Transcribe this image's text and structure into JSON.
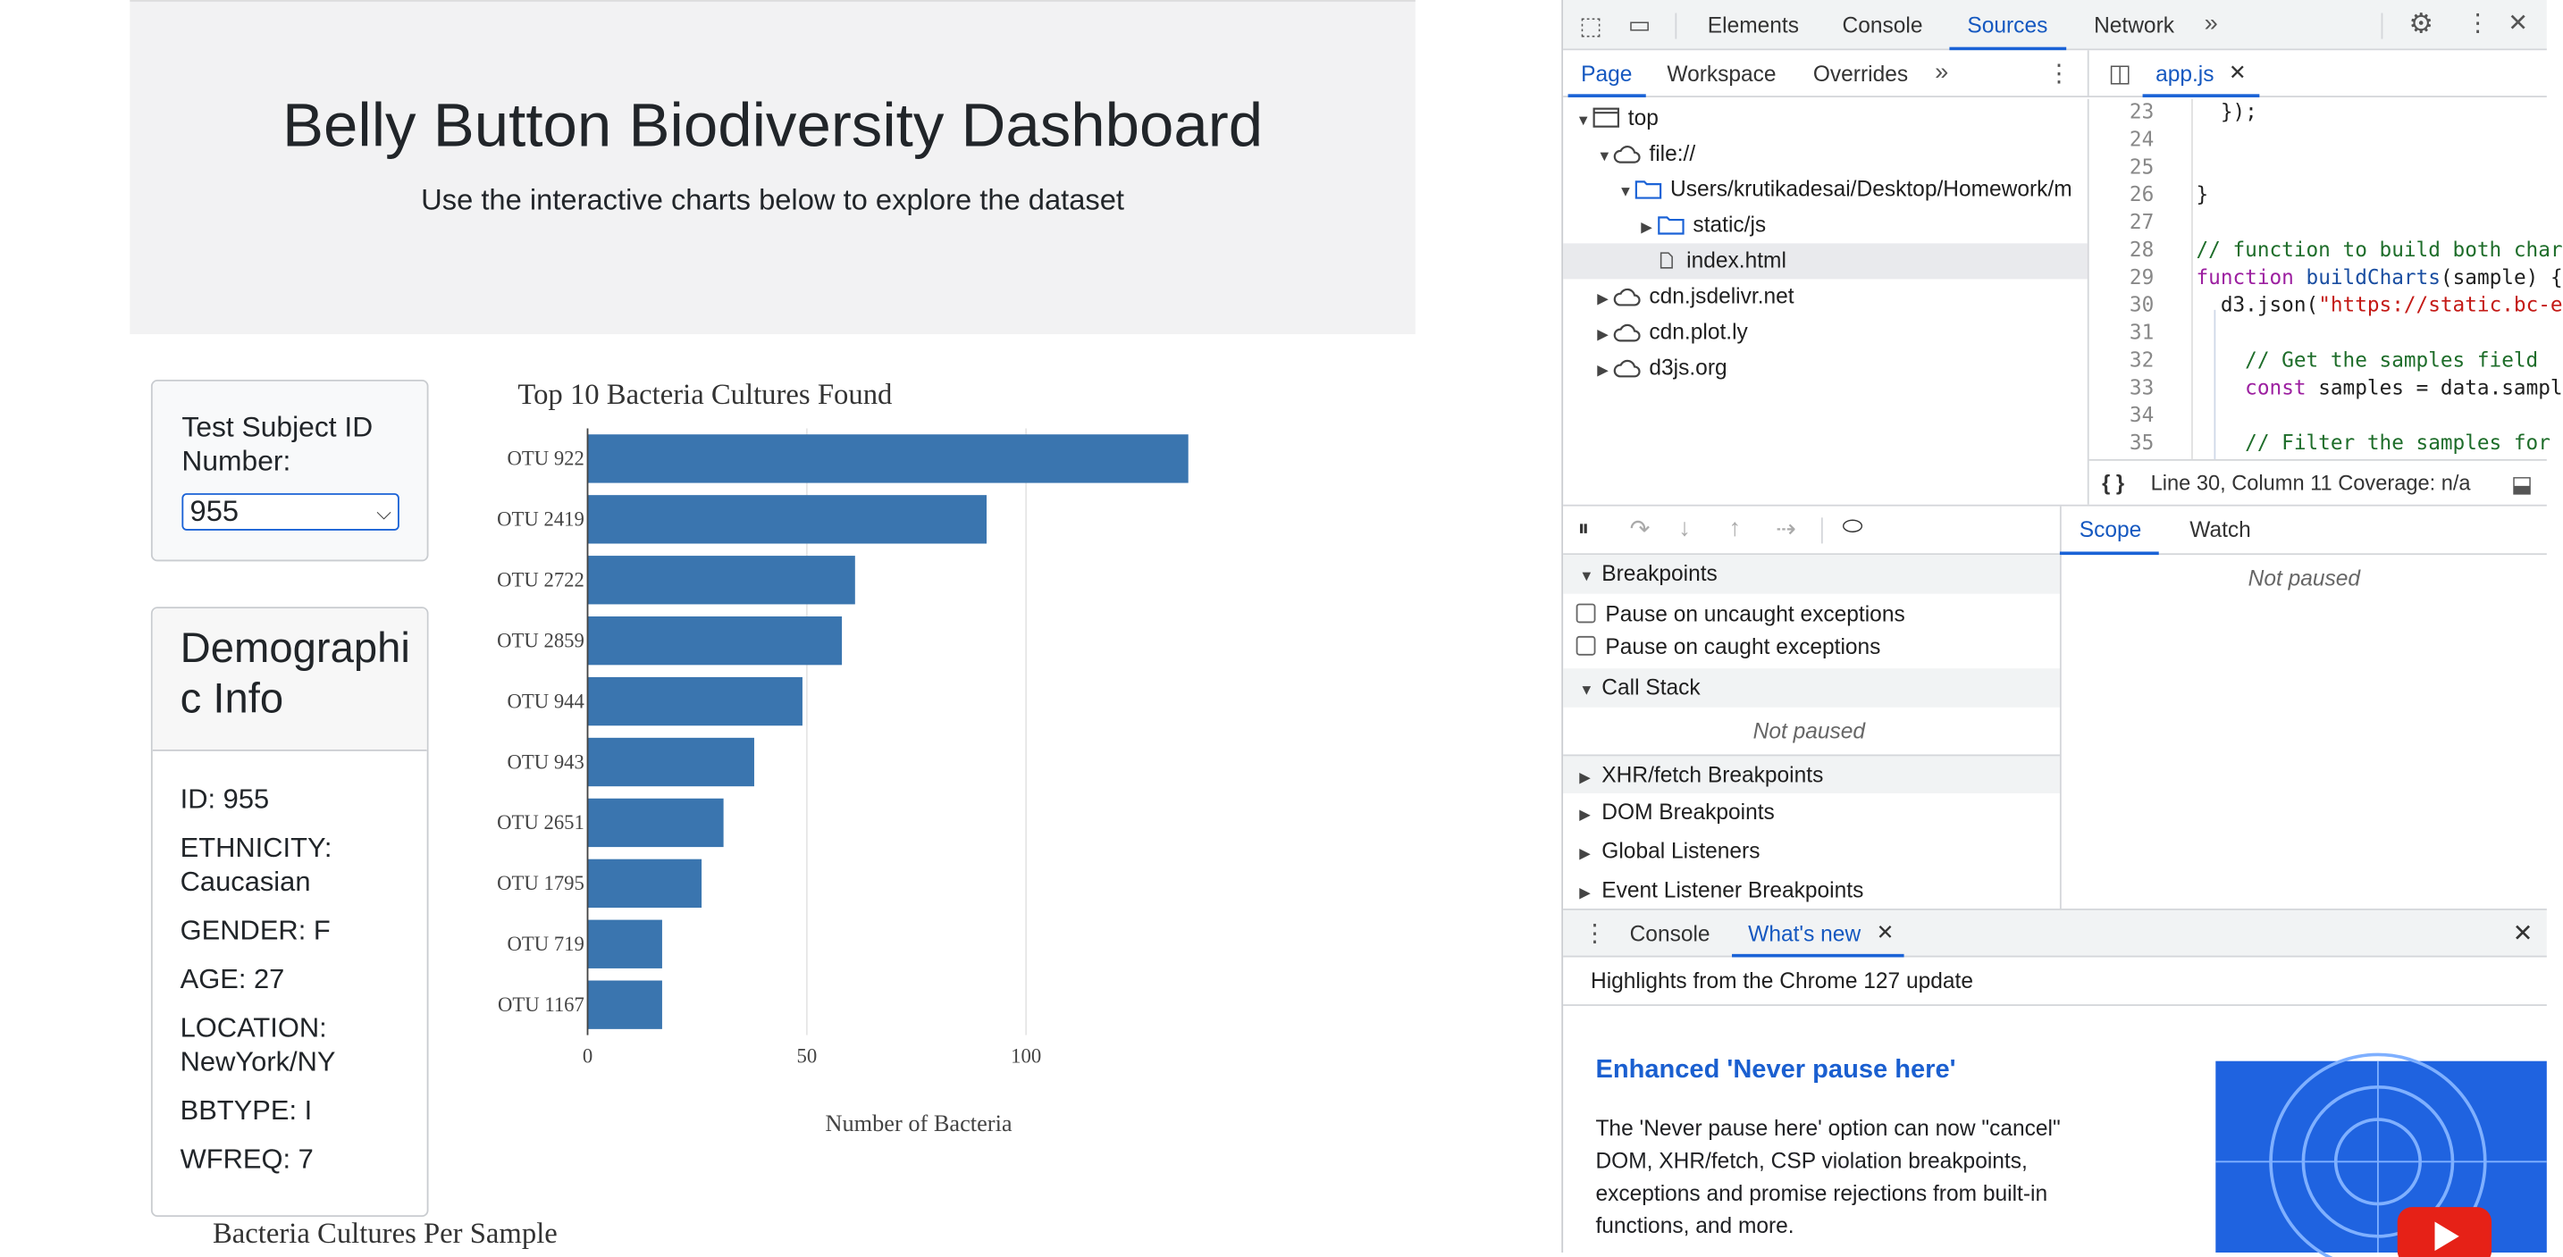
{
  "page": {
    "title": "Belly Button Biodiversity Dashboard",
    "subtitle": "Use the interactive charts below to explore the dataset",
    "selector": {
      "label": "Test Subject ID Number:",
      "value": "955"
    },
    "demographic": {
      "title": "Demographic Info",
      "lines": [
        "ID: 955",
        "ETHNICITY: Caucasian",
        "GENDER: F",
        "AGE: 27",
        "LOCATION: NewYork/NY",
        "BBTYPE: I",
        "WFREQ: 7"
      ]
    },
    "bubble_title": "Bacteria Cultures Per Sample"
  },
  "chart_data": {
    "type": "bar",
    "orientation": "horizontal",
    "title": "Top 10 Bacteria Cultures Found",
    "xlabel": "Number of Bacteria",
    "ylabel": "",
    "categories": [
      "OTU 922",
      "OTU 2419",
      "OTU 2722",
      "OTU 2859",
      "OTU 944",
      "OTU 943",
      "OTU 2651",
      "OTU 1795",
      "OTU 719",
      "OTU 1167"
    ],
    "values": [
      137,
      91,
      61,
      58,
      49,
      38,
      31,
      26,
      17,
      17
    ],
    "xticks": [
      0,
      50,
      100
    ],
    "xlim": [
      0,
      144
    ],
    "grid": true,
    "bar_color": "#3a75af"
  },
  "devtools": {
    "main_tabs": [
      "Elements",
      "Console",
      "Sources",
      "Network"
    ],
    "active_tab": "Sources",
    "nav_tabs": [
      "Page",
      "Workspace",
      "Overrides"
    ],
    "active_nav": "Page",
    "file_tab": "app.js",
    "tree": [
      {
        "label": "top"
      },
      {
        "label": "file://"
      },
      {
        "label": "Users/krutikadesai/Desktop/Homework/m"
      },
      {
        "label": "static/js"
      },
      {
        "label": "index.html"
      },
      {
        "label": "cdn.jsdelivr.net"
      },
      {
        "label": "cdn.plot.ly"
      },
      {
        "label": "d3js.org"
      }
    ],
    "code_lines": [
      {
        "n": "23",
        "text": "  });"
      },
      {
        "n": "24",
        "text": ""
      },
      {
        "n": "25",
        "text": ""
      },
      {
        "n": "26",
        "text": "}"
      },
      {
        "n": "27",
        "text": ""
      },
      {
        "n": "28",
        "text": "// function to build both char"
      },
      {
        "n": "29",
        "text": "function buildCharts(sample) {"
      },
      {
        "n": "30",
        "text": "  d3.json(\"https://static.bc-e"
      },
      {
        "n": "31",
        "text": ""
      },
      {
        "n": "32",
        "text": "    // Get the samples field"
      },
      {
        "n": "33",
        "text": "    const samples = data.sampl"
      },
      {
        "n": "34",
        "text": ""
      },
      {
        "n": "35",
        "text": "    // Filter the samples for"
      }
    ],
    "status": "Line 30, Column 11  Coverage: n/a",
    "status_braces": "{ }",
    "scope_tabs": [
      "Scope",
      "Watch"
    ],
    "not_paused": "Not paused",
    "breakpoints_header": "Breakpoints",
    "pause_uncaught": "Pause on uncaught exceptions",
    "pause_caught": "Pause on caught exceptions",
    "call_stack_header": "Call Stack",
    "sections": [
      "XHR/fetch Breakpoints",
      "DOM Breakpoints",
      "Global Listeners",
      "Event Listener Breakpoints"
    ],
    "drawer_tabs": [
      "Console",
      "What's new"
    ],
    "highlights": "Highlights from the Chrome 127 update",
    "whats_new_title": "Enhanced 'Never pause here'",
    "whats_new_body": "The 'Never pause here' option can now \"cancel\" DOM, XHR/fetch, CSP violation breakpoints, exceptions and promise rejections from built-in functions, and more."
  }
}
